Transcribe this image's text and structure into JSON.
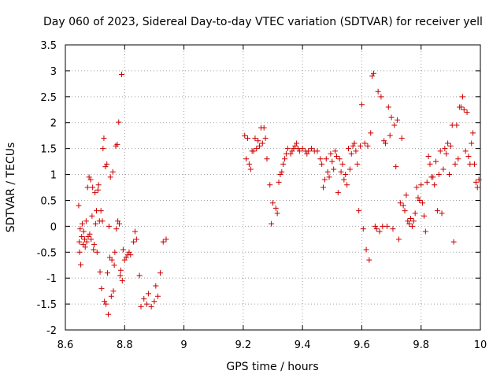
{
  "chart_data": {
    "type": "scatter",
    "title": "Day 060 of 2023, Sidereal Day-to-day VTEC variation (SDTVAR) for receiver yell",
    "xlabel": "GPS time / hours",
    "ylabel": "SDTVAR / TECUs",
    "xlim": [
      8.6,
      10
    ],
    "ylim": [
      -2,
      3.5
    ],
    "xticks": [
      8.6,
      8.8,
      9,
      9.2,
      9.4,
      9.6,
      9.8,
      10
    ],
    "yticks": [
      -2,
      -1.5,
      -1,
      -0.5,
      0,
      0.5,
      1,
      1.5,
      2,
      2.5,
      3,
      3.5
    ],
    "xtick_labels": [
      "8.6",
      "8.8",
      "9",
      "9.2",
      "9.4",
      "9.6",
      "9.8",
      "10"
    ],
    "ytick_labels": [
      "-2",
      "-1.5",
      "-1",
      "-0.5",
      "0",
      "0.5",
      "1",
      "1.5",
      "2",
      "2.5",
      "3",
      "3.5"
    ],
    "grid": true,
    "marker": "+",
    "color": "#cc0000",
    "series": [
      {
        "name": "SDTVAR",
        "points": [
          [
            8.645,
            0.4
          ],
          [
            8.647,
            -0.3
          ],
          [
            8.648,
            -0.5
          ],
          [
            8.65,
            -0.05
          ],
          [
            8.652,
            -0.74
          ],
          [
            8.655,
            -0.2
          ],
          [
            8.657,
            0.05
          ],
          [
            8.66,
            -0.35
          ],
          [
            8.662,
            -0.1
          ],
          [
            8.665,
            -0.25
          ],
          [
            8.667,
            -0.4
          ],
          [
            8.67,
            0.1
          ],
          [
            8.672,
            -0.3
          ],
          [
            8.675,
            0.75
          ],
          [
            8.677,
            -0.2
          ],
          [
            8.68,
            0.95
          ],
          [
            8.682,
            -0.15
          ],
          [
            8.685,
            0.9
          ],
          [
            8.687,
            -0.25
          ],
          [
            8.69,
            0.2
          ],
          [
            8.692,
            0.75
          ],
          [
            8.695,
            -0.45
          ],
          [
            8.697,
            -0.35
          ],
          [
            8.7,
            0.65
          ],
          [
            8.702,
            0.05
          ],
          [
            8.705,
            0.3
          ],
          [
            8.707,
            -0.5
          ],
          [
            8.71,
            0.7
          ],
          [
            8.712,
            0.8
          ],
          [
            8.715,
            0.1
          ],
          [
            8.717,
            -0.88
          ],
          [
            8.72,
            0.3
          ],
          [
            8.722,
            -1.2
          ],
          [
            8.725,
            0.1
          ],
          [
            8.727,
            1.5
          ],
          [
            8.73,
            1.7
          ],
          [
            8.732,
            -1.45
          ],
          [
            8.735,
            1.15
          ],
          [
            8.737,
            -1.5
          ],
          [
            8.74,
            1.2
          ],
          [
            8.742,
            -0.9
          ],
          [
            8.745,
            -1.7
          ],
          [
            8.747,
            0.0
          ],
          [
            8.75,
            -0.6
          ],
          [
            8.752,
            0.95
          ],
          [
            8.755,
            -1.35
          ],
          [
            8.757,
            -0.65
          ],
          [
            8.76,
            1.05
          ],
          [
            8.762,
            -1.25
          ],
          [
            8.765,
            -0.75
          ],
          [
            8.767,
            -0.5
          ],
          [
            8.77,
            1.55
          ],
          [
            8.772,
            -0.05
          ],
          [
            8.775,
            1.58
          ],
          [
            8.777,
            0.1
          ],
          [
            8.78,
            2.01
          ],
          [
            8.782,
            0.05
          ],
          [
            8.785,
            -0.95
          ],
          [
            8.787,
            -0.85
          ],
          [
            8.79,
            2.93
          ],
          [
            8.792,
            -1.05
          ],
          [
            8.795,
            -0.45
          ],
          [
            8.8,
            -0.65
          ],
          [
            8.805,
            -0.6
          ],
          [
            8.81,
            -0.55
          ],
          [
            8.815,
            -0.5
          ],
          [
            8.82,
            -0.55
          ],
          [
            8.83,
            -0.3
          ],
          [
            8.835,
            -0.1
          ],
          [
            8.84,
            -0.25
          ],
          [
            8.85,
            -0.95
          ],
          [
            8.855,
            -1.55
          ],
          [
            8.865,
            -1.4
          ],
          [
            8.875,
            -1.5
          ],
          [
            8.88,
            -1.3
          ],
          [
            8.89,
            -1.55
          ],
          [
            8.9,
            -1.45
          ],
          [
            8.905,
            -1.15
          ],
          [
            8.912,
            -1.35
          ],
          [
            8.92,
            -0.9
          ],
          [
            8.93,
            -0.3
          ],
          [
            8.94,
            -0.25
          ],
          [
            9.205,
            1.75
          ],
          [
            9.21,
            1.3
          ],
          [
            9.215,
            1.7
          ],
          [
            9.22,
            1.2
          ],
          [
            9.225,
            1.1
          ],
          [
            9.23,
            1.45
          ],
          [
            9.235,
            1.45
          ],
          [
            9.24,
            1.7
          ],
          [
            9.245,
            1.5
          ],
          [
            9.25,
            1.65
          ],
          [
            9.255,
            1.55
          ],
          [
            9.26,
            1.9
          ],
          [
            9.265,
            1.6
          ],
          [
            9.27,
            1.9
          ],
          [
            9.275,
            1.7
          ],
          [
            9.28,
            1.3
          ],
          [
            9.29,
            0.8
          ],
          [
            9.295,
            0.05
          ],
          [
            9.3,
            0.45
          ],
          [
            9.31,
            0.35
          ],
          [
            9.315,
            0.25
          ],
          [
            9.32,
            0.85
          ],
          [
            9.325,
            1.0
          ],
          [
            9.33,
            1.05
          ],
          [
            9.335,
            1.2
          ],
          [
            9.34,
            1.3
          ],
          [
            9.345,
            1.4
          ],
          [
            9.35,
            1.5
          ],
          [
            9.36,
            1.4
          ],
          [
            9.365,
            1.45
          ],
          [
            9.37,
            1.5
          ],
          [
            9.375,
            1.55
          ],
          [
            9.38,
            1.6
          ],
          [
            9.385,
            1.5
          ],
          [
            9.39,
            1.45
          ],
          [
            9.4,
            1.5
          ],
          [
            9.41,
            1.45
          ],
          [
            9.415,
            1.4
          ],
          [
            9.42,
            1.45
          ],
          [
            9.43,
            1.5
          ],
          [
            9.44,
            1.45
          ],
          [
            9.45,
            1.45
          ],
          [
            9.46,
            1.3
          ],
          [
            9.465,
            1.2
          ],
          [
            9.47,
            0.75
          ],
          [
            9.475,
            0.9
          ],
          [
            9.48,
            1.3
          ],
          [
            9.485,
            1.05
          ],
          [
            9.49,
            0.95
          ],
          [
            9.495,
            1.4
          ],
          [
            9.5,
            1.25
          ],
          [
            9.505,
            1.1
          ],
          [
            9.51,
            1.45
          ],
          [
            9.515,
            1.35
          ],
          [
            9.52,
            0.65
          ],
          [
            9.525,
            1.3
          ],
          [
            9.53,
            1.05
          ],
          [
            9.535,
            1.2
          ],
          [
            9.54,
            0.9
          ],
          [
            9.545,
            1.0
          ],
          [
            9.55,
            0.8
          ],
          [
            9.555,
            1.5
          ],
          [
            9.56,
            1.1
          ],
          [
            9.565,
            1.4
          ],
          [
            9.57,
            1.55
          ],
          [
            9.575,
            1.6
          ],
          [
            9.58,
            1.45
          ],
          [
            9.585,
            1.2
          ],
          [
            9.59,
            0.3
          ],
          [
            9.595,
            1.55
          ],
          [
            9.6,
            2.35
          ],
          [
            9.605,
            -0.05
          ],
          [
            9.61,
            1.6
          ],
          [
            9.615,
            -0.45
          ],
          [
            9.62,
            1.55
          ],
          [
            9.625,
            -0.65
          ],
          [
            9.63,
            1.8
          ],
          [
            9.635,
            2.9
          ],
          [
            9.64,
            2.95
          ],
          [
            9.645,
            0.0
          ],
          [
            9.65,
            -0.05
          ],
          [
            9.655,
            2.6
          ],
          [
            9.66,
            -0.1
          ],
          [
            9.665,
            2.5
          ],
          [
            9.67,
            0.0
          ],
          [
            9.675,
            1.65
          ],
          [
            9.68,
            1.6
          ],
          [
            9.685,
            0.0
          ],
          [
            9.69,
            2.3
          ],
          [
            9.695,
            1.75
          ],
          [
            9.7,
            2.1
          ],
          [
            9.705,
            -0.05
          ],
          [
            9.71,
            1.95
          ],
          [
            9.715,
            1.15
          ],
          [
            9.72,
            2.05
          ],
          [
            9.725,
            -0.25
          ],
          [
            9.73,
            0.45
          ],
          [
            9.735,
            1.7
          ],
          [
            9.74,
            0.4
          ],
          [
            9.745,
            0.3
          ],
          [
            9.75,
            0.6
          ],
          [
            9.755,
            0.1
          ],
          [
            9.76,
            0.05
          ],
          [
            9.765,
            0.15
          ],
          [
            9.77,
            0.0
          ],
          [
            9.775,
            0.1
          ],
          [
            9.78,
            0.25
          ],
          [
            9.785,
            0.75
          ],
          [
            9.79,
            0.55
          ],
          [
            9.795,
            0.5
          ],
          [
            9.8,
            0.8
          ],
          [
            9.805,
            0.45
          ],
          [
            9.81,
            0.2
          ],
          [
            9.815,
            -0.1
          ],
          [
            9.82,
            0.85
          ],
          [
            9.825,
            1.35
          ],
          [
            9.83,
            1.2
          ],
          [
            9.835,
            0.95
          ],
          [
            9.84,
            0.95
          ],
          [
            9.845,
            0.8
          ],
          [
            9.85,
            1.25
          ],
          [
            9.855,
            0.3
          ],
          [
            9.86,
            1.0
          ],
          [
            9.865,
            1.45
          ],
          [
            9.87,
            0.25
          ],
          [
            9.875,
            1.1
          ],
          [
            9.88,
            1.5
          ],
          [
            9.885,
            1.4
          ],
          [
            9.89,
            1.6
          ],
          [
            9.895,
            1.0
          ],
          [
            9.9,
            1.55
          ],
          [
            9.905,
            1.95
          ],
          [
            9.91,
            -0.3
          ],
          [
            9.915,
            1.2
          ],
          [
            9.92,
            1.95
          ],
          [
            9.925,
            1.3
          ],
          [
            9.93,
            2.3
          ],
          [
            9.935,
            2.3
          ],
          [
            9.94,
            2.5
          ],
          [
            9.945,
            2.25
          ],
          [
            9.95,
            1.45
          ],
          [
            9.955,
            2.2
          ],
          [
            9.96,
            1.35
          ],
          [
            9.965,
            1.2
          ],
          [
            9.97,
            1.6
          ],
          [
            9.975,
            1.8
          ],
          [
            9.98,
            1.2
          ],
          [
            9.985,
            0.85
          ],
          [
            9.99,
            0.75
          ],
          [
            9.995,
            0.9
          ]
        ]
      }
    ]
  }
}
